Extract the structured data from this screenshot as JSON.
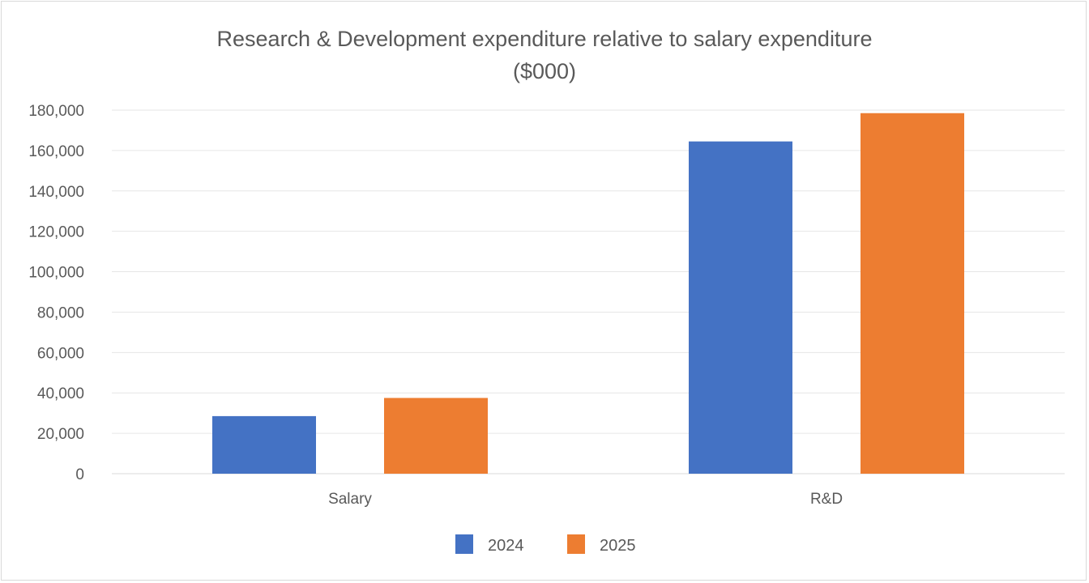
{
  "chart_data": {
    "type": "bar",
    "title_lines": [
      "Research & Development expenditure relative to salary expenditure",
      "($000)"
    ],
    "categories": [
      "Salary",
      "R&D"
    ],
    "series": [
      {
        "name": "2024",
        "color": "#4472C4",
        "values": [
          28500,
          164500
        ]
      },
      {
        "name": "2025",
        "color": "#ED7D31",
        "values": [
          37500,
          178500
        ]
      }
    ],
    "y_ticks": [
      "0",
      "20,000",
      "40,000",
      "60,000",
      "80,000",
      "100,000",
      "120,000",
      "140,000",
      "160,000",
      "180,000"
    ],
    "ylim": [
      0,
      180000
    ],
    "grid": true,
    "legend_position": "bottom"
  }
}
